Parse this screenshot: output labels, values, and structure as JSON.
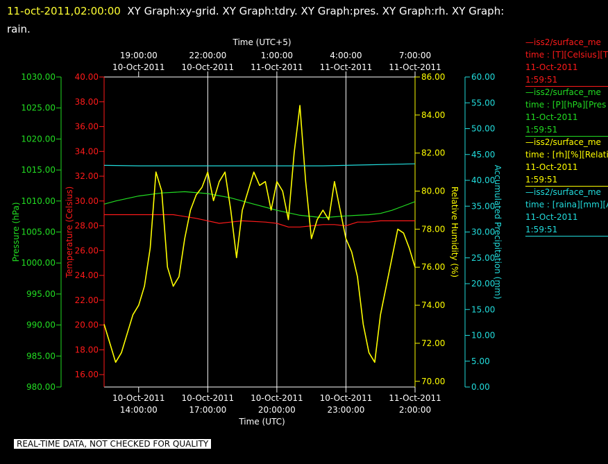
{
  "title": {
    "timestamp": "11-oct-2011,02:00:00",
    "graphs": "XY Graph:xy-grid.  XY Graph:tdry.  XY Graph:pres.  XY Graph:rh.  XY Graph:",
    "wrap": "rain."
  },
  "top_axis_title": "Time (UTC+5)",
  "bottom_axis_title": "Time (UTC)",
  "qc_banner": "REAL-TIME DATA, NOT CHECKED FOR QUALITY",
  "colors": {
    "temperature": "#ff1a1a",
    "pressure": "#22dd22",
    "humidity": "#ffff00",
    "precipitation": "#22dddd",
    "grid": "#ffffff"
  },
  "legend": [
    {
      "color": "#ff1a1a",
      "line1": "—iss2/surface_me",
      "line2": "time : [T][Celsius][T",
      "line3": "11-Oct-2011",
      "line4": "1:59:51"
    },
    {
      "color": "#22dd22",
      "line1": "—iss2/surface_me",
      "line2": "time : [P][hPa][Pres",
      "line3": "11-Oct-2011",
      "line4": "1:59:51"
    },
    {
      "color": "#ffff00",
      "line1": "—iss2/surface_me",
      "line2": "time : [rh][%][Relati",
      "line3": "11-Oct-2011",
      "line4": "1:59:51"
    },
    {
      "color": "#22dddd",
      "line1": "—iss2/surface_me",
      "line2": "time : [raina][mm][A",
      "line3": "11-Oct-2011",
      "line4": "1:59:51"
    }
  ],
  "chart_data": {
    "type": "line",
    "x_range_utc": [
      "10-Oct-2011 12:30",
      "11-Oct-2011 02:00"
    ],
    "bottom_ticks": [
      {
        "date": "10-Oct-2011",
        "time": "14:00:00"
      },
      {
        "date": "10-Oct-2011",
        "time": "17:00:00"
      },
      {
        "date": "10-Oct-2011",
        "time": "20:00:00"
      },
      {
        "date": "10-Oct-2011",
        "time": "23:00:00"
      },
      {
        "date": "11-Oct-2011",
        "time": "2:00:00"
      }
    ],
    "top_ticks": [
      {
        "time": "19:00:00",
        "date": "10-Oct-2011"
      },
      {
        "time": "22:00:00",
        "date": "10-Oct-2011"
      },
      {
        "time": "1:00:00",
        "date": "11-Oct-2011"
      },
      {
        "time": "4:00:00",
        "date": "11-Oct-2011"
      },
      {
        "time": "7:00:00",
        "date": "11-Oct-2011"
      }
    ],
    "vertical_grid_utc": [
      "17:00:00",
      "20:00:00",
      "23:00:00"
    ],
    "axes": [
      {
        "id": "pressure",
        "label": "Pressure (hPa)",
        "side": "left-outer",
        "ylim": [
          980,
          1030
        ],
        "ticks": [
          "980.00",
          "985.00",
          "990.00",
          "995.00",
          "1000.00",
          "1005.00",
          "1010.00",
          "1015.00",
          "1020.00",
          "1025.00",
          "1030.00"
        ]
      },
      {
        "id": "temperature",
        "label": "Temperature (Celsius)",
        "side": "left-inner",
        "ylim": [
          15,
          40
        ],
        "ticks": [
          "16.00",
          "18.00",
          "20.00",
          "22.00",
          "24.00",
          "26.00",
          "28.00",
          "30.00",
          "32.00",
          "34.00",
          "36.00",
          "38.00",
          "40.00"
        ]
      },
      {
        "id": "humidity",
        "label": "Relative Humidity (%)",
        "side": "right-inner",
        "ylim": [
          69.7,
          86
        ],
        "ticks": [
          "70.00",
          "72.00",
          "74.00",
          "76.00",
          "78.00",
          "80.00",
          "82.00",
          "84.00",
          "86.00"
        ]
      },
      {
        "id": "precipitation",
        "label": "Accumulated Precipitation (mm)",
        "side": "right-outer",
        "ylim": [
          0,
          60
        ],
        "ticks": [
          "0.00",
          "5.00",
          "10.00",
          "15.00",
          "20.00",
          "25.00",
          "30.00",
          "35.00",
          "40.00",
          "45.00",
          "50.00",
          "55.00",
          "60.00"
        ]
      }
    ],
    "series": [
      {
        "name": "Temperature",
        "axis": "temperature",
        "x_hours": [
          12.5,
          13.5,
          14.5,
          15.5,
          16.5,
          17.5,
          18.0,
          18.5,
          19.5,
          20.0,
          20.5,
          21.0,
          21.5,
          22.0,
          22.5,
          23.0,
          23.5,
          24.0,
          24.5,
          25.0,
          25.5,
          26.0
        ],
        "y": [
          28.9,
          28.9,
          28.9,
          28.9,
          28.6,
          28.2,
          28.3,
          28.4,
          28.3,
          28.2,
          27.9,
          27.9,
          28.0,
          28.1,
          28.1,
          28.0,
          28.3,
          28.3,
          28.4,
          28.4,
          28.4,
          28.4
        ]
      },
      {
        "name": "Pressure",
        "axis": "pressure",
        "x_hours": [
          12.5,
          13.0,
          14.0,
          15.0,
          16.0,
          17.0,
          18.0,
          19.0,
          20.0,
          21.0,
          22.0,
          23.0,
          24.0,
          24.5,
          25.0,
          25.5,
          26.0
        ],
        "y": [
          1009.5,
          1010.0,
          1010.8,
          1011.3,
          1011.5,
          1011.2,
          1010.5,
          1009.5,
          1008.5,
          1007.7,
          1007.3,
          1007.6,
          1007.8,
          1008.0,
          1008.5,
          1009.2,
          1009.9
        ]
      },
      {
        "name": "Relative Humidity",
        "axis": "humidity",
        "x_hours": [
          12.5,
          12.75,
          13.0,
          13.25,
          13.5,
          13.75,
          14.0,
          14.25,
          14.5,
          14.75,
          15.0,
          15.25,
          15.5,
          15.75,
          16.0,
          16.25,
          16.5,
          16.75,
          17.0,
          17.25,
          17.5,
          17.75,
          18.0,
          18.25,
          18.5,
          18.75,
          19.0,
          19.25,
          19.5,
          19.75,
          20.0,
          20.25,
          20.5,
          20.75,
          21.0,
          21.25,
          21.5,
          21.75,
          22.0,
          22.25,
          22.5,
          22.75,
          23.0,
          23.25,
          23.5,
          23.75,
          24.0,
          24.25,
          24.5,
          24.75,
          25.0,
          25.25,
          25.5,
          25.75,
          26.0
        ],
        "y": [
          73.0,
          72.0,
          71.0,
          71.5,
          72.5,
          73.5,
          74.0,
          75.0,
          77.0,
          81.0,
          80.0,
          76.0,
          75.0,
          75.5,
          77.5,
          79.0,
          79.8,
          80.2,
          81.0,
          79.5,
          80.5,
          81.0,
          79.0,
          76.5,
          79.0,
          80.0,
          81.0,
          80.3,
          80.5,
          79.0,
          80.5,
          80.0,
          78.5,
          82.0,
          84.5,
          80.5,
          77.5,
          78.5,
          79.0,
          78.5,
          80.5,
          79.0,
          77.5,
          76.8,
          75.5,
          73.0,
          71.5,
          71.0,
          73.5,
          75.0,
          76.5,
          78.0,
          77.8,
          77.0,
          76.0
        ]
      },
      {
        "name": "Accumulated Precipitation",
        "axis": "precipitation",
        "x_hours": [
          12.5,
          14.0,
          16.0,
          18.0,
          20.0,
          22.0,
          24.0,
          26.0
        ],
        "y": [
          42.9,
          42.8,
          42.8,
          42.8,
          42.8,
          42.8,
          43.0,
          43.2
        ]
      }
    ]
  }
}
